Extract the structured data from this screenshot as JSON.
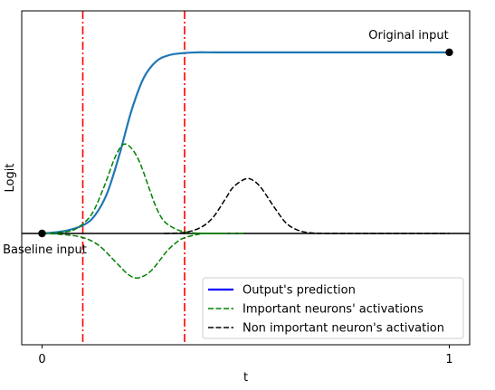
{
  "chart_data": {
    "type": "line",
    "title": "",
    "xlabel": "t",
    "ylabel": "Logit",
    "xlim": [
      -0.05,
      1.05
    ],
    "ylim": [
      -0.55,
      1.1
    ],
    "grid": false,
    "legend_position": "lower-right",
    "x_ticks": [
      {
        "value": 0,
        "label": "0"
      },
      {
        "value": 1,
        "label": "1"
      }
    ],
    "y_ticks": [],
    "series": [
      {
        "name": "Output's prediction",
        "color": "#1f77b4",
        "legend_color": "#0000ff",
        "style": "solid",
        "x": [
          0.0,
          0.05,
          0.1,
          0.13,
          0.16,
          0.19,
          0.22,
          0.25,
          0.28,
          0.31,
          0.34,
          0.38,
          0.42,
          0.5,
          0.6,
          0.7,
          0.8,
          0.9,
          1.0
        ],
        "y": [
          0.0,
          0.01,
          0.04,
          0.09,
          0.2,
          0.39,
          0.61,
          0.77,
          0.85,
          0.88,
          0.89,
          0.895,
          0.895,
          0.895,
          0.895,
          0.895,
          0.895,
          0.895,
          0.895
        ]
      },
      {
        "name": "Important neurons' activations",
        "color": "#008000",
        "style": "dashed",
        "x": [
          0.0,
          0.04,
          0.08,
          0.12,
          0.15,
          0.18,
          0.2,
          0.22,
          0.24,
          0.26,
          0.28,
          0.3,
          0.33,
          0.36,
          0.4,
          0.45,
          0.5
        ],
        "y": [
          0.0,
          0.005,
          0.02,
          0.09,
          0.22,
          0.38,
          0.44,
          0.42,
          0.35,
          0.24,
          0.13,
          0.06,
          0.02,
          0.005,
          0.0,
          0.0,
          0.0
        ]
      },
      {
        "name": "",
        "color": "#008000",
        "style": "dashed",
        "x": [
          0.0,
          0.05,
          0.1,
          0.14,
          0.18,
          0.21,
          0.23,
          0.25,
          0.27,
          0.29,
          0.31,
          0.34,
          0.37,
          0.4,
          0.45
        ],
        "y": [
          0.0,
          -0.005,
          -0.02,
          -0.06,
          -0.14,
          -0.2,
          -0.22,
          -0.21,
          -0.18,
          -0.13,
          -0.08,
          -0.03,
          -0.01,
          0.0,
          0.0
        ]
      },
      {
        "name": "Non important neuron's activation",
        "color": "#000000",
        "style": "dashed",
        "x": [
          0.3,
          0.35,
          0.39,
          0.42,
          0.45,
          0.47,
          0.5,
          0.52,
          0.54,
          0.57,
          0.6,
          0.63,
          0.66,
          0.7,
          0.75,
          1.0
        ],
        "y": [
          0.0,
          0.005,
          0.03,
          0.08,
          0.17,
          0.23,
          0.27,
          0.26,
          0.22,
          0.13,
          0.05,
          0.015,
          0.003,
          0.0,
          0.0,
          0.0
        ]
      }
    ],
    "points": [
      {
        "x": 0,
        "y": 0,
        "label": "Baseline input",
        "color": "#000000"
      },
      {
        "x": 1,
        "y": 0.895,
        "label": "Original input",
        "color": "#000000"
      }
    ],
    "reference_lines": [
      {
        "orientation": "vertical",
        "value": 0.1,
        "color": "#ff0000",
        "style": "dashdot"
      },
      {
        "orientation": "vertical",
        "value": 0.35,
        "color": "#ff0000",
        "style": "dashdot"
      },
      {
        "orientation": "horizontal",
        "value": 0,
        "color": "#000000",
        "style": "solid"
      }
    ]
  }
}
